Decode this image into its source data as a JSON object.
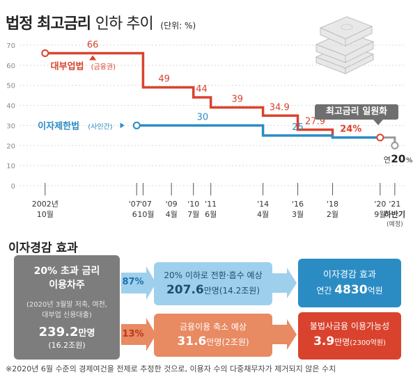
{
  "header": {
    "title_bold": "법정 최고금리",
    "title_light": "인하 추이",
    "unit": "(단위: %)"
  },
  "chart_data": {
    "type": "line",
    "ylim": [
      0,
      70
    ],
    "yticks": [
      0,
      10,
      20,
      30,
      40,
      50,
      60,
      70
    ],
    "x_tick_labels": [
      {
        "t": 2002.4,
        "top": "2002년",
        "bottom": "10월"
      },
      {
        "t": 2007.4,
        "top": "'07",
        "bottom": "6"
      },
      {
        "t": 2007.75,
        "top": "'07",
        "bottom": "10월"
      },
      {
        "t": 2009.3,
        "top": "'09",
        "bottom": "4월"
      },
      {
        "t": 2010.5,
        "top": "'10",
        "bottom": "7월"
      },
      {
        "t": 2011.45,
        "top": "'11",
        "bottom": "6월"
      },
      {
        "t": 2014.3,
        "top": "'14",
        "bottom": "4월"
      },
      {
        "t": 2016.2,
        "top": "'16",
        "bottom": "3월"
      },
      {
        "t": 2018.1,
        "top": "'18",
        "bottom": "2월"
      },
      {
        "t": 2020.7,
        "top": "'20",
        "bottom": "9월"
      },
      {
        "t": 2021.5,
        "top": "'21",
        "bottom": "하반기",
        "note": "(예정)"
      }
    ],
    "series": [
      {
        "name": "대부업법",
        "name_note": "(금융권)",
        "color": "#d9432e",
        "points": [
          [
            2002.4,
            66
          ],
          [
            2007.75,
            66
          ],
          [
            2007.75,
            49
          ],
          [
            2010.5,
            49
          ],
          [
            2010.5,
            44
          ],
          [
            2011.45,
            44
          ],
          [
            2011.45,
            39
          ],
          [
            2014.3,
            39
          ],
          [
            2014.3,
            34.9
          ],
          [
            2016.2,
            34.9
          ],
          [
            2016.2,
            27.9
          ],
          [
            2018.1,
            27.9
          ],
          [
            2018.1,
            24
          ],
          [
            2020.7,
            24
          ]
        ],
        "labels": [
          {
            "x": 2005.0,
            "y": 66,
            "text": "66"
          },
          {
            "x": 2008.9,
            "y": 49,
            "text": "49"
          },
          {
            "x": 2010.95,
            "y": 44,
            "text": "44"
          },
          {
            "x": 2012.9,
            "y": 39,
            "text": "39"
          },
          {
            "x": 2015.2,
            "y": 34.9,
            "text": "34.9"
          },
          {
            "x": 2017.15,
            "y": 27.9,
            "text": "27.9"
          },
          {
            "x": 2019.1,
            "y": 24,
            "text": "24%"
          }
        ]
      },
      {
        "name": "이자제한법",
        "name_note": "(사인간)",
        "color": "#2b8cc4",
        "points": [
          [
            2007.4,
            30
          ],
          [
            2014.3,
            30
          ],
          [
            2014.3,
            25
          ],
          [
            2018.1,
            25
          ],
          [
            2018.1,
            24
          ],
          [
            2020.7,
            24
          ]
        ],
        "labels": [
          {
            "x": 2011.0,
            "y": 30,
            "text": "30"
          },
          {
            "x": 2016.2,
            "y": 25,
            "text": "25"
          }
        ]
      },
      {
        "name": "최고금리 일원화",
        "color": "#999999",
        "points": [
          [
            2020.7,
            24
          ],
          [
            2021.5,
            24
          ],
          [
            2021.5,
            20
          ]
        ],
        "labels": [
          {
            "x": 2021.5,
            "y": 20,
            "prefix": "연",
            "text": "20",
            "suffix": "%"
          }
        ]
      }
    ]
  },
  "effects": {
    "title": "이자경감 효과",
    "source": {
      "line1": "20% 초과 금리",
      "line2": "이용차주",
      "note1": "(2020년 3월말 저축, 여전,",
      "note2": "대부업 신용대출)",
      "value": "239.2",
      "unit": "만명",
      "sub": "(16.2조원)"
    },
    "top": {
      "pct": "87%",
      "mid_line": "20% 이하로 전환·흡수 예상",
      "mid_value": "207.6",
      "mid_unit": "만명",
      "mid_sub": "(14.2조원)",
      "result_line": "이자경감 효과",
      "result_prefix": "연간",
      "result_value": "4830",
      "result_unit": "억원"
    },
    "bottom": {
      "pct": "13%",
      "mid_line": "금융이용 축소 예상",
      "mid_value": "31.6",
      "mid_unit": "만명",
      "mid_sub": "(2조원)",
      "result_line": "불법사금융 이용가능성",
      "result_value": "3.9",
      "result_unit": "만명",
      "result_sub": "(2300억원)"
    },
    "colors": {
      "gray": "#7d7d7d",
      "blue_light": "#9ed0ee",
      "blue_dark": "#2b8cc4",
      "orange": "#e88a62",
      "red": "#d9432e"
    }
  },
  "footnote": "※2020년 6월 수준의 경제여건을 전제로 추정한 것으로, 이용자 수의 다중채무자가 제거되지 않은 수치",
  "icons": [
    "money-stack-icon"
  ]
}
